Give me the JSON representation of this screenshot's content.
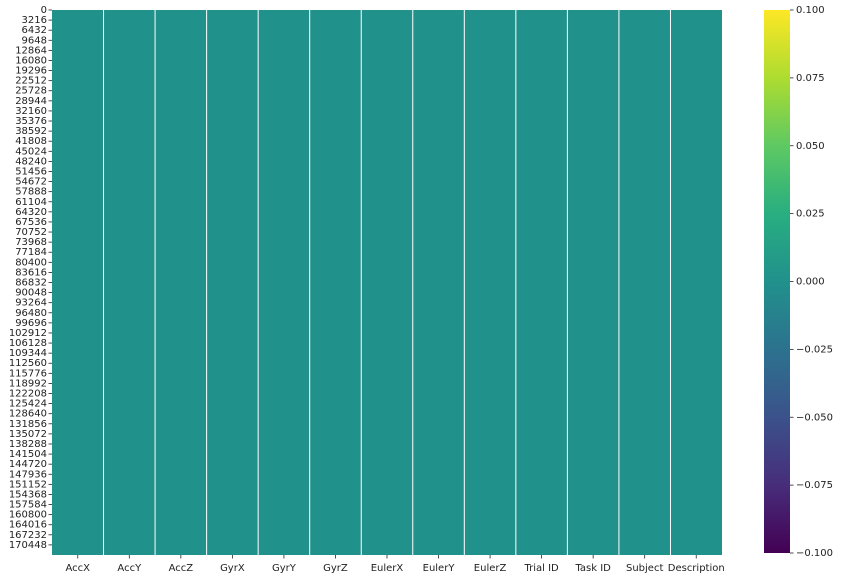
{
  "chart_data": {
    "type": "heatmap",
    "title": "",
    "xlabel": "",
    "ylabel": "",
    "columns": [
      "AccX",
      "AccY",
      "AccZ",
      "GyrX",
      "GyrY",
      "GyrZ",
      "EulerX",
      "EulerY",
      "EulerZ",
      "Trial ID",
      "Task ID",
      "Subject",
      "Description"
    ],
    "row_tick_labels": [
      "0",
      "3216",
      "6432",
      "9648",
      "12864",
      "16080",
      "19296",
      "22512",
      "25728",
      "28944",
      "32160",
      "35376",
      "38592",
      "41808",
      "45024",
      "48240",
      "51456",
      "54672",
      "57888",
      "61104",
      "64320",
      "67536",
      "70752",
      "73968",
      "77184",
      "80400",
      "83616",
      "86832",
      "90048",
      "93264",
      "96480",
      "99696",
      "102912",
      "106128",
      "109344",
      "112560",
      "115776",
      "118992",
      "122208",
      "125424",
      "128640",
      "131856",
      "135072",
      "138288",
      "141504",
      "144720",
      "147936",
      "151152",
      "154368",
      "157584",
      "160800",
      "164016",
      "167232",
      "170448"
    ],
    "row_range": [
      0,
      173664
    ],
    "value_description": "all cells equal",
    "cell_value": 0.0,
    "colorbar": {
      "colormap": "viridis",
      "vmin": -0.1,
      "vmax": 0.1,
      "tick_values": [
        0.1,
        0.075,
        0.05,
        0.025,
        0.0,
        -0.025,
        -0.05,
        -0.075,
        -0.1
      ],
      "tick_labels": [
        "0.100",
        "0.075",
        "0.050",
        "0.025",
        "0.000",
        "−0.025",
        "−0.050",
        "−0.075",
        "−0.100"
      ],
      "placement": "right"
    },
    "grid": false,
    "column_separators": true,
    "colors": {
      "cell": "#21918c",
      "separator": "#ffffff"
    }
  }
}
